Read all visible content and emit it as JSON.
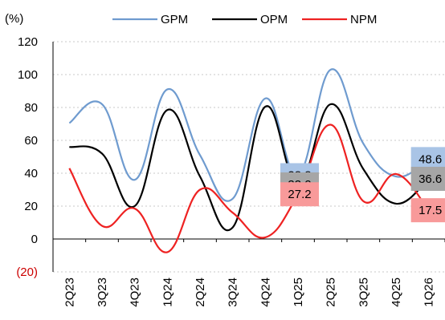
{
  "chart_data": {
    "type": "line",
    "unit_label": "(%)",
    "categories": [
      "2Q23",
      "3Q23",
      "4Q23",
      "1Q24",
      "2Q24",
      "3Q24",
      "4Q24",
      "1Q25",
      "2Q25",
      "3Q25",
      "4Q25",
      "1Q26"
    ],
    "y_ticks": [
      {
        "value": 120,
        "label": "120"
      },
      {
        "value": 100,
        "label": "100"
      },
      {
        "value": 80,
        "label": "80"
      },
      {
        "value": 60,
        "label": "60"
      },
      {
        "value": 40,
        "label": "40"
      },
      {
        "value": 20,
        "label": "20"
      },
      {
        "value": 0,
        "label": "0"
      },
      {
        "value": -20,
        "label": "(20)"
      }
    ],
    "ylim": [
      -20,
      120
    ],
    "grid": "horizontal-dashed",
    "legend_position": "top",
    "series": [
      {
        "name": "GPM",
        "color": "#6f9bcf",
        "values": [
          70.5,
          82,
          36,
          91,
          51,
          24.5,
          85.5,
          38.8,
          103,
          58,
          38,
          48.6
        ]
      },
      {
        "name": "OPM",
        "color": "#000000",
        "values": [
          56,
          52,
          20,
          78.5,
          38,
          7,
          80.5,
          33.2,
          82,
          42.5,
          21.5,
          36.6
        ]
      },
      {
        "name": "NPM",
        "color": "#ee2222",
        "values": [
          43,
          8,
          18.5,
          -8,
          30,
          16,
          1,
          27.2,
          69.5,
          23,
          39.5,
          17.5
        ]
      }
    ],
    "annotations": [
      {
        "text": "38.8",
        "category": "1Q25",
        "value": 38.8,
        "side": "right",
        "fill": "#a9c4e6"
      },
      {
        "text": "33.2",
        "category": "1Q25",
        "value": 33.2,
        "side": "right",
        "fill": "#a6a6a6"
      },
      {
        "text": "27.2",
        "category": "1Q25",
        "value": 27.2,
        "side": "right",
        "fill": "#f89a9a"
      },
      {
        "text": "48.6",
        "category": "1Q26",
        "value": 48.6,
        "side": "left",
        "fill": "#a9c4e6"
      },
      {
        "text": "36.6",
        "category": "1Q26",
        "value": 36.6,
        "side": "left",
        "fill": "#a6a6a6"
      },
      {
        "text": "17.5",
        "category": "1Q26",
        "value": 17.5,
        "side": "left",
        "fill": "#f89a9a"
      }
    ]
  }
}
